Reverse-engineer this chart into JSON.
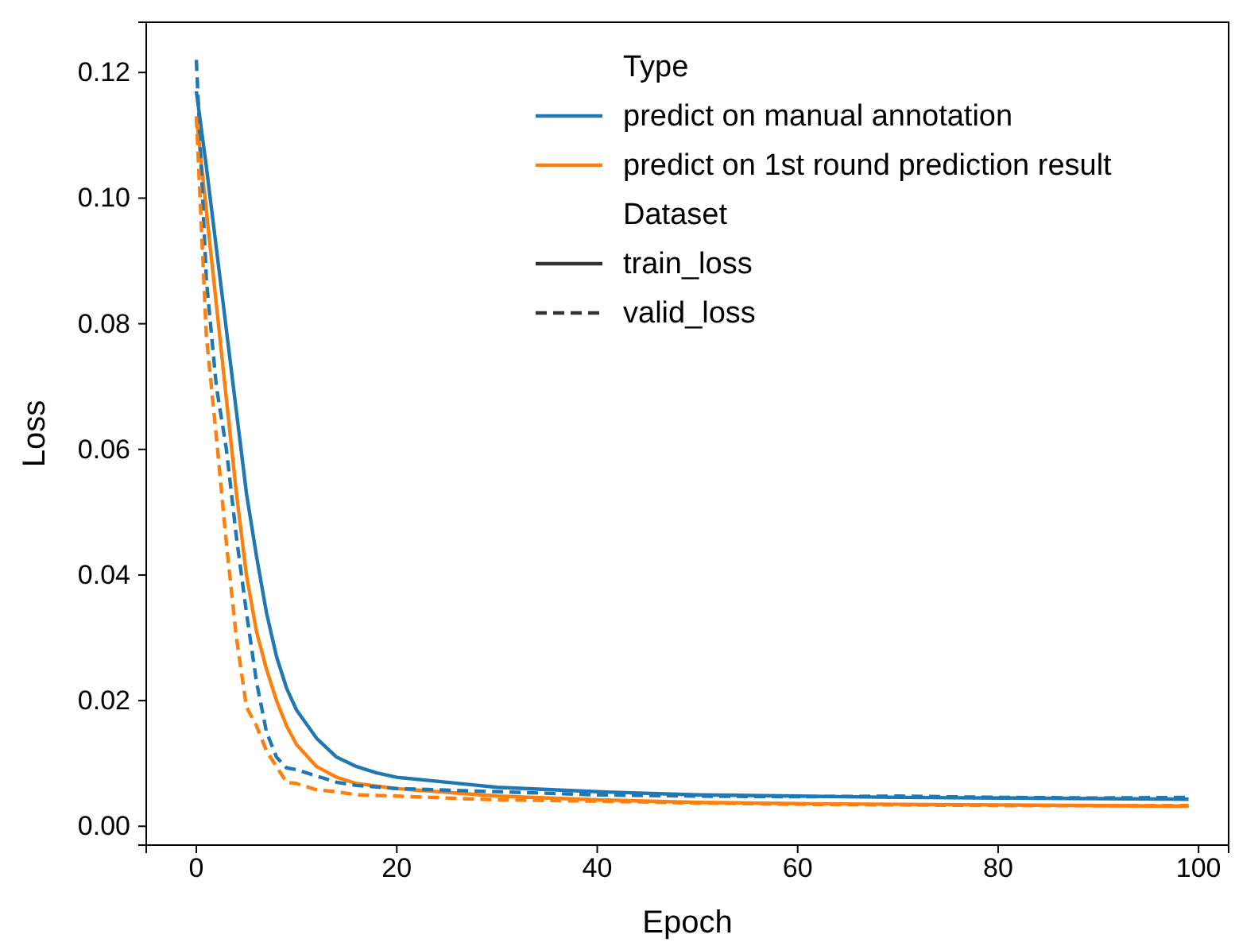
{
  "chart_data": {
    "type": "line",
    "xlabel": "Epoch",
    "ylabel": "Loss",
    "legend": "top right",
    "legend_title": "Type",
    "annotations": [
      "Dataset",
      "train_loss",
      "valid_loss"
    ],
    "xlim": [
      -5,
      103
    ],
    "xticks": [
      0,
      20,
      40,
      60,
      80,
      100
    ],
    "ylim": [
      -0.003,
      0.128
    ],
    "yticks": [
      {
        "value": 0,
        "label": "0.00"
      },
      {
        "value": 0.02,
        "label": "0.02"
      },
      {
        "value": 0.04,
        "label": "0.04"
      },
      {
        "value": 0.06,
        "label": "0.06"
      },
      {
        "value": 0.08,
        "label": "0.08"
      },
      {
        "value": 0.1,
        "label": "0.10"
      },
      {
        "value": 0.12,
        "label": "0.12"
      }
    ],
    "grid": false,
    "marker": "none",
    "series": [
      {
        "name": "predict on manual annotation",
        "color": "#1f77b4",
        "line_style": "solid",
        "x": [
          0,
          1,
          2,
          3,
          4,
          5,
          6,
          7,
          8,
          9,
          10,
          12,
          14,
          16,
          18,
          20,
          25,
          30,
          40,
          50,
          60,
          70,
          80,
          90,
          99
        ],
        "values": [
          0.117,
          0.105,
          0.092,
          0.079,
          0.066,
          0.053,
          0.043,
          0.034,
          0.027,
          0.022,
          0.0185,
          0.014,
          0.011,
          0.0095,
          0.0085,
          0.0078,
          0.007,
          0.0062,
          0.0055,
          0.005,
          0.0048,
          0.0046,
          0.0045,
          0.0044,
          0.0043
        ]
      },
      {
        "name": "predict on 1st round prediction result",
        "color": "#ff7f0e",
        "line_style": "solid",
        "x": [
          0,
          1,
          2,
          3,
          4,
          5,
          6,
          7,
          8,
          9,
          10,
          12,
          14,
          16,
          20,
          30,
          40,
          50,
          60,
          70,
          80,
          90,
          99
        ],
        "values": [
          0.113,
          0.098,
          0.083,
          0.068,
          0.053,
          0.04,
          0.031,
          0.025,
          0.02,
          0.016,
          0.013,
          0.0095,
          0.0078,
          0.0068,
          0.006,
          0.0048,
          0.0042,
          0.0038,
          0.0036,
          0.0035,
          0.0034,
          0.0033,
          0.0032
        ]
      },
      {
        "color": "#1f77b4",
        "line_style": "dashed",
        "x": [
          0,
          1,
          2,
          3,
          4,
          5,
          6,
          7,
          8,
          9,
          10,
          12,
          14,
          16,
          20,
          30,
          40,
          50,
          60,
          70,
          80,
          90,
          99
        ],
        "values": [
          0.122,
          0.087,
          0.07,
          0.06,
          0.046,
          0.034,
          0.023,
          0.015,
          0.011,
          0.0093,
          0.009,
          0.008,
          0.007,
          0.0065,
          0.006,
          0.0055,
          0.005,
          0.0048,
          0.0047,
          0.0048,
          0.0046,
          0.0045,
          0.0046
        ]
      },
      {
        "color": "#ff7f0e",
        "line_style": "dashed",
        "x": [
          0,
          1,
          2,
          3,
          4,
          5,
          6,
          7,
          8,
          9,
          10,
          12,
          14,
          16,
          20,
          30,
          40,
          50,
          60,
          70,
          80,
          90,
          99
        ],
        "values": [
          0.113,
          0.078,
          0.062,
          0.045,
          0.03,
          0.019,
          0.016,
          0.012,
          0.0095,
          0.007,
          0.0068,
          0.0058,
          0.0055,
          0.005,
          0.0048,
          0.0042,
          0.004,
          0.0037,
          0.0035,
          0.0034,
          0.0033,
          0.0033,
          0.0033
        ]
      }
    ]
  }
}
